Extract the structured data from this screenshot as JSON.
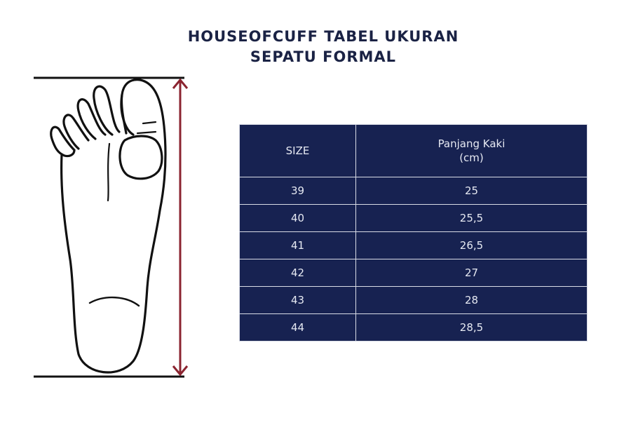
{
  "title": {
    "line1": "HOUSEOFCUFF TABEL UKURAN",
    "line2": "SEPATU FORMAL"
  },
  "table": {
    "headers": {
      "size": "SIZE",
      "length_line1": "Panjang Kaki",
      "length_line2": "(cm)"
    },
    "rows": [
      {
        "size": "39",
        "length": "25"
      },
      {
        "size": "40",
        "length": "25,5"
      },
      {
        "size": "41",
        "length": "26,5"
      },
      {
        "size": "42",
        "length": "27"
      },
      {
        "size": "43",
        "length": "28"
      },
      {
        "size": "44",
        "length": "28,5"
      }
    ]
  },
  "colors": {
    "title": "#1a2244",
    "table_bg": "#172251",
    "arrow": "#8b2430"
  },
  "icons": [
    "foot-outline-icon",
    "measure-arrow-icon"
  ]
}
